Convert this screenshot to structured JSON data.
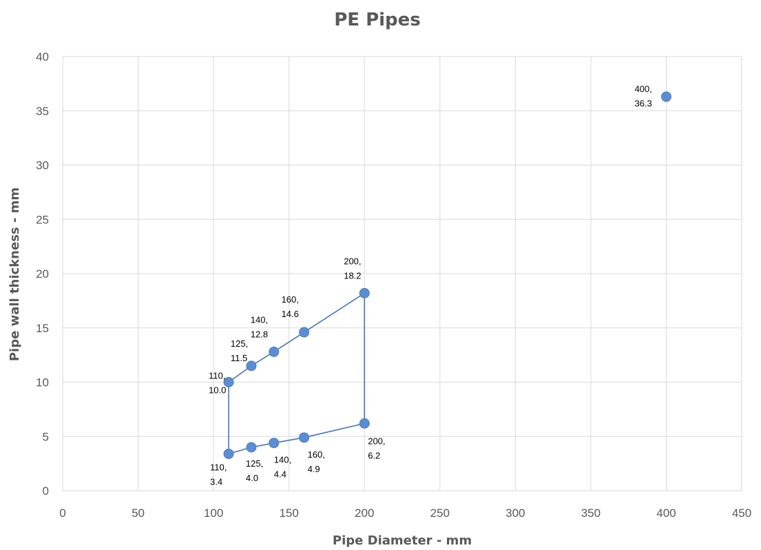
{
  "chart_data": {
    "type": "scatter",
    "title": "PE Pipes",
    "xlabel": "Pipe Diameter - mm",
    "ylabel": "Pipe wall thickness - mm",
    "xlim": [
      0,
      450
    ],
    "ylim": [
      0,
      40
    ],
    "x_ticks": [
      0,
      50,
      100,
      150,
      200,
      250,
      300,
      350,
      400,
      450
    ],
    "y_ticks": [
      0,
      5,
      10,
      15,
      20,
      25,
      30,
      35,
      40
    ],
    "grid": true,
    "legend": "none",
    "series_color": "#4472c4",
    "points": [
      {
        "x": 110,
        "y": 10.0,
        "label": [
          "110,",
          "10.0"
        ]
      },
      {
        "x": 125,
        "y": 11.5,
        "label": [
          "125,",
          "11.5"
        ]
      },
      {
        "x": 140,
        "y": 12.8,
        "label": [
          "140,",
          "12.8"
        ]
      },
      {
        "x": 160,
        "y": 14.6,
        "label": [
          "160,",
          "14.6"
        ]
      },
      {
        "x": 200,
        "y": 18.2,
        "label": [
          "200,",
          "18.2"
        ]
      },
      {
        "x": 200,
        "y": 6.2,
        "label": [
          "200,",
          "6.2"
        ]
      },
      {
        "x": 160,
        "y": 4.9,
        "label": [
          "160,",
          "4.9"
        ]
      },
      {
        "x": 140,
        "y": 4.4,
        "label": [
          "140,",
          "4.4"
        ]
      },
      {
        "x": 125,
        "y": 4.0,
        "label": [
          "125,",
          "4.0"
        ]
      },
      {
        "x": 110,
        "y": 3.4,
        "label": [
          "110,",
          "3.4"
        ]
      },
      {
        "x": 400,
        "y": 36.3,
        "label": [
          "400,",
          "36.3"
        ]
      }
    ],
    "connected_path": [
      [
        110,
        10.0
      ],
      [
        125,
        11.5
      ],
      [
        140,
        12.8
      ],
      [
        160,
        14.6
      ],
      [
        200,
        18.2
      ],
      [
        200,
        6.2
      ],
      [
        160,
        4.9
      ],
      [
        140,
        4.4
      ],
      [
        125,
        4.0
      ],
      [
        110,
        3.4
      ],
      [
        110,
        10.0
      ]
    ]
  }
}
